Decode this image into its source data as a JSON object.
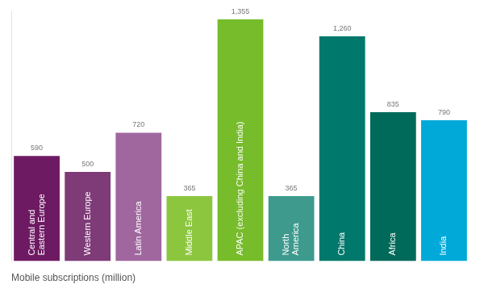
{
  "chart_data": {
    "type": "bar",
    "title": "Mobile subscriptions (million)",
    "categories": [
      "Central and Eastern Europe",
      "Western Europe",
      "Latin America",
      "Middle East",
      "APAC (excluding China and India)",
      "North America",
      "China",
      "Africa",
      "India"
    ],
    "values": [
      590,
      500,
      720,
      365,
      1355,
      365,
      1260,
      835,
      790
    ],
    "value_labels": [
      "590",
      "500",
      "720",
      "365",
      "1,355",
      "365",
      "1,260",
      "835",
      "790"
    ],
    "colors": [
      "#6e1a63",
      "#7e3b78",
      "#a0679f",
      "#8cc63f",
      "#77bc2a",
      "#3d9a8d",
      "#00786b",
      "#006a5a",
      "#00a9d8"
    ],
    "ylim": [
      0,
      1400
    ],
    "grid": false,
    "data_labels": true,
    "tick_labels": false
  }
}
